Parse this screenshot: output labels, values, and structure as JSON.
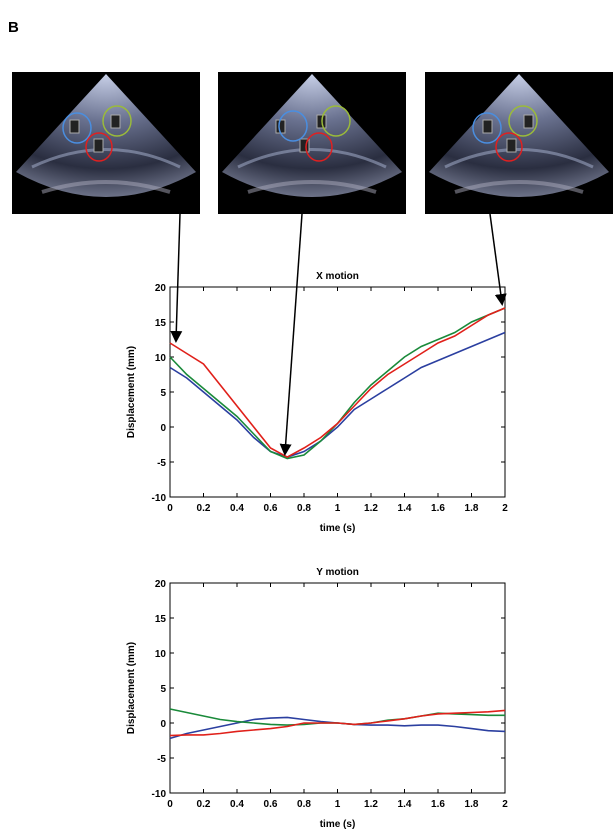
{
  "panel_label": "B",
  "chart_data": [
    {
      "type": "line",
      "title": "X motion",
      "x_label": "time (s)",
      "y_label": "Displacement (mm)",
      "x": [
        0,
        0.1,
        0.2,
        0.3,
        0.4,
        0.5,
        0.6,
        0.7,
        0.8,
        0.9,
        1,
        1.1,
        1.2,
        1.3,
        1.4,
        1.5,
        1.6,
        1.7,
        1.8,
        1.9,
        2
      ],
      "series": [
        {
          "color": "#2b3fa0",
          "values": [
            8.5,
            7,
            5,
            3,
            1,
            -1.5,
            -3.5,
            -4.3,
            -3.5,
            -2,
            0,
            2.5,
            4,
            5.5,
            7,
            8.5,
            9.5,
            10.5,
            11.5,
            12.5,
            13.5
          ]
        },
        {
          "color": "#1a8a3a",
          "values": [
            10,
            7.5,
            5.5,
            3.5,
            1.5,
            -1,
            -3.5,
            -4.5,
            -4,
            -2,
            0.5,
            3.5,
            6,
            8,
            10,
            11.5,
            12.5,
            13.5,
            15,
            16,
            17
          ]
        },
        {
          "color": "#e0201a",
          "values": [
            12,
            10.5,
            9,
            6,
            3,
            0,
            -3,
            -4.3,
            -3,
            -1.5,
            0.5,
            3,
            5.5,
            7.5,
            9,
            10.5,
            12,
            13,
            14.5,
            16,
            17
          ]
        }
      ],
      "xlim": [
        0,
        2
      ],
      "ylim": [
        -10,
        20
      ],
      "xticks": [
        0,
        0.2,
        0.4,
        0.6,
        0.8,
        1,
        1.2,
        1.4,
        1.6,
        1.8,
        2
      ],
      "yticks": [
        -10,
        -5,
        0,
        5,
        10,
        15,
        20
      ]
    },
    {
      "type": "line",
      "title": "Y motion",
      "x_label": "time (s)",
      "y_label": "Displacement (mm)",
      "x": [
        0,
        0.1,
        0.2,
        0.3,
        0.4,
        0.5,
        0.6,
        0.7,
        0.8,
        0.9,
        1,
        1.1,
        1.2,
        1.3,
        1.4,
        1.5,
        1.6,
        1.7,
        1.8,
        1.9,
        2
      ],
      "series": [
        {
          "color": "#2b3fa0",
          "values": [
            -2.2,
            -1.5,
            -1,
            -0.5,
            0,
            0.5,
            0.7,
            0.8,
            0.5,
            0.2,
            0,
            -0.2,
            -0.3,
            -0.3,
            -0.4,
            -0.3,
            -0.3,
            -0.5,
            -0.8,
            -1.1,
            -1.2
          ]
        },
        {
          "color": "#1a8a3a",
          "values": [
            2,
            1.5,
            1,
            0.5,
            0.2,
            0,
            -0.2,
            -0.3,
            -0.2,
            0,
            0,
            -0.2,
            0,
            0.4,
            0.6,
            1,
            1.4,
            1.3,
            1.2,
            1.1,
            1.1
          ]
        },
        {
          "color": "#e0201a",
          "values": [
            -1.8,
            -1.7,
            -1.7,
            -1.5,
            -1.2,
            -1,
            -0.8,
            -0.5,
            0,
            0,
            0,
            -0.2,
            0,
            0.3,
            0.6,
            1,
            1.3,
            1.4,
            1.5,
            1.6,
            1.8
          ]
        }
      ],
      "xlim": [
        0,
        2
      ],
      "ylim": [
        -10,
        20
      ],
      "xticks": [
        0,
        0.2,
        0.4,
        0.6,
        0.8,
        1,
        1.2,
        1.4,
        1.6,
        1.8,
        2
      ],
      "yticks": [
        -10,
        -5,
        0,
        5,
        10,
        15,
        20
      ]
    }
  ]
}
